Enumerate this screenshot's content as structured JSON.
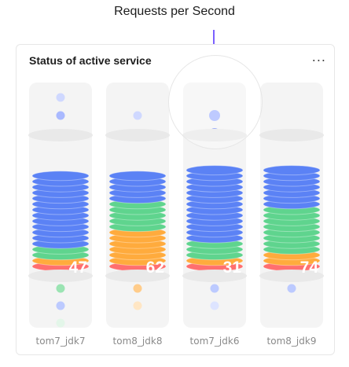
{
  "annotation": {
    "text": "Requests per Second"
  },
  "card": {
    "title": "Status of active service",
    "menu_label": "..."
  },
  "services": [
    {
      "name": "tom7_jdk7",
      "value": "47",
      "segments": {
        "blue": 13,
        "green": 2,
        "orange": 1,
        "red": 1
      },
      "top_dots": [
        "#cfd8ff",
        "#a9b9ff",
        "#7f95f5"
      ],
      "bottom_dots": [
        "#9be4b3",
        "#bccaff",
        "#e3f6e9"
      ]
    },
    {
      "name": "tom8_jdk8",
      "value": "62",
      "segments": {
        "blue": 5,
        "green": 5,
        "orange": 6,
        "red": 1
      },
      "top_dots": [
        "#cfd8ff",
        "#8aa2f7"
      ],
      "bottom_dots": [
        "#ffcc8a",
        "#ffe6c4"
      ]
    },
    {
      "name": "tom7_jdk6",
      "value": "31",
      "segments": {
        "blue": 13,
        "green": 3,
        "orange": 1,
        "red": 1
      },
      "top_dots": [
        "#a9b9ff",
        "#7f95f5"
      ],
      "bottom_dots": [
        "#bccaff",
        "#dde4ff"
      ]
    },
    {
      "name": "tom8_jdk9",
      "value": "74",
      "segments": {
        "blue": 7,
        "green": 8,
        "orange": 2,
        "red": 1
      },
      "top_dots": [
        "#bccaff"
      ],
      "bottom_dots": [
        "#bccaff"
      ]
    }
  ],
  "colors": {
    "blue": "#5b82f5",
    "green": "#5fd48e",
    "orange": "#ffab3d",
    "red": "#ff6f6f",
    "cap": "#e9e9e9"
  }
}
